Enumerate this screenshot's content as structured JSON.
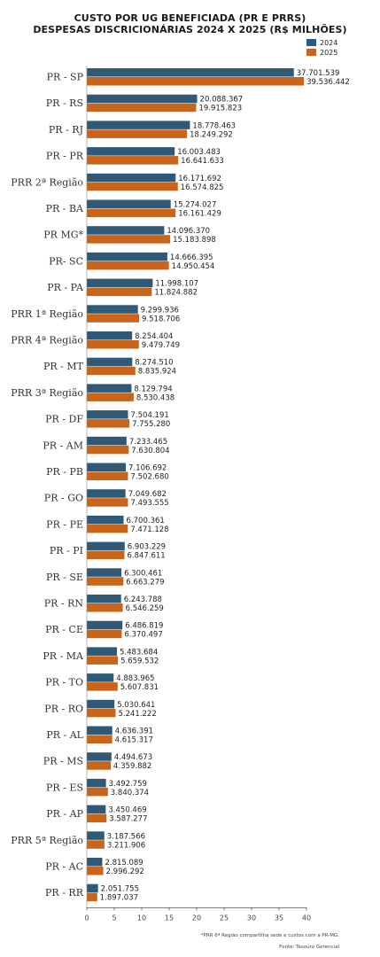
{
  "chart_data": {
    "type": "bar",
    "orientation": "horizontal",
    "title": "CUSTO POR UG BENEFICIADA (PR E PRRS)",
    "subtitle": "DESPESAS DISCRICIONÁRIAS 2024 X 2025 (R$ MILHÕES)",
    "legend_position": "top-right",
    "xlim": [
      0,
      40
    ],
    "xticks": [
      "0",
      "5",
      "10",
      "15",
      "20",
      "25",
      "30",
      "35",
      "40"
    ],
    "grid": false,
    "categories": [
      "PR - SP",
      "PR - RS",
      "PR - RJ",
      "PR - PR",
      "PRR 2ª Região",
      "PR - BA",
      "PR MG*",
      "PR- SC",
      "PR - PA",
      "PRR 1ª Região",
      "PRR 4ª Região",
      "PR - MT",
      "PRR 3ª Região",
      "PR - DF",
      "PR - AM",
      "PR - PB",
      "PR - GO",
      "PR - PE",
      "PR - PI",
      "PR - SE",
      "PR - RN",
      "PR - CE",
      "PR - MA",
      "PR - TO",
      "PR - RO",
      "PR - AL",
      "PR - MS",
      "PR - ES",
      "PR - AP",
      "PRR 5ª Região",
      "PR - AC",
      "PR - RR"
    ],
    "series": [
      {
        "name": "2024",
        "color": "#2e5a78",
        "values": [
          37.701539,
          20.088367,
          18.778463,
          16.003483,
          16.171692,
          15.274027,
          14.09637,
          14.666395,
          11.998107,
          9.299936,
          8.254404,
          8.27451,
          8.129794,
          7.504191,
          7.233465,
          7.106692,
          7.049682,
          6.700361,
          6.903229,
          6.300461,
          6.243788,
          6.486819,
          5.483684,
          4.883965,
          5.030641,
          4.636391,
          4.494673,
          3.492759,
          3.450469,
          3.187566,
          2.815089,
          2.051755
        ],
        "labels": [
          "37.701.539",
          "20.088.367",
          "18.778.463",
          "16.003.483",
          "16.171.692",
          "15.274.027",
          "14.096.370",
          "14.666.395",
          "11.998.107",
          "9.299.936",
          "8.254.404",
          "8.274.510",
          "8.129.794",
          "7.504.191",
          "7.233.465",
          "7.106.692",
          "7.049.682",
          "6.700.361",
          "6.903.229",
          "6.300.461",
          "6.243.788",
          "6.486.819",
          "5.483.684",
          "4.883.965",
          "5.030.641",
          "4.636.391",
          "4.494.673",
          "3.492.759",
          "3.450.469",
          "3.187.566",
          "2.815.089",
          "2.051.755"
        ]
      },
      {
        "name": "2025",
        "color": "#c8651b",
        "values": [
          39.536442,
          19.915823,
          18.249292,
          16.641633,
          16.574825,
          16.161429,
          15.183898,
          14.950454,
          11.824882,
          9.518706,
          9.479749,
          8.835924,
          8.530438,
          7.75528,
          7.630804,
          7.50268,
          7.493555,
          7.471128,
          6.847611,
          6.663279,
          6.546259,
          6.370497,
          5.659532,
          5.607831,
          5.241222,
          4.615317,
          4.359882,
          3.840374,
          3.587277,
          3.211906,
          2.996292,
          1.897037
        ],
        "labels": [
          "39.536.442",
          "19.915.823",
          "18.249.292",
          "16.641.633",
          "16.574.825",
          "16.161.429",
          "15.183.898",
          "14.950.454",
          "11.824.882",
          "9.518.706",
          "9.479.749",
          "8.835.924",
          "8.530.438",
          "7.755.280",
          "7.630.804",
          "7.502.680",
          "7.493.555",
          "7.471.128",
          "6.847.611",
          "6.663.279",
          "6.546.259",
          "6.370.497",
          "5.659.532",
          "5.607.831",
          "5.241.222",
          "4.615.317",
          "4.359.882",
          "3.840.374",
          "3.587.277",
          "3.211.906",
          "2.996.292",
          "1.897.037"
        ]
      }
    ],
    "footnotes": [
      "*PRR 6ª Região compartilha sede e custos com a PR-MG.",
      "Fonte: Tesouro Gerencial"
    ]
  }
}
